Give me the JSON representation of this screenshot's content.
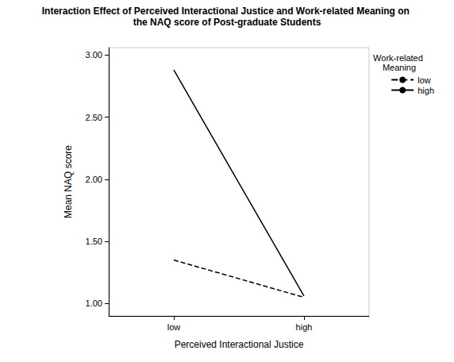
{
  "chart_data": {
    "type": "line",
    "title": "Interaction Effect of Perceived Interactional Justice and Work-related Meaning on the NAQ score of Post-graduate Students",
    "x_label": "Perceived Interactional Justice",
    "y_label": "Mean NAQ score",
    "legend_title": "Work-related Meaning",
    "legend": "right",
    "grid": false,
    "categories": [
      "low",
      "high"
    ],
    "series": [
      {
        "name": "low",
        "color": "#000000",
        "line_style": "dashed",
        "marker": "none",
        "values": [
          1.35,
          1.05
        ]
      },
      {
        "name": "high",
        "color": "#000000",
        "line_style": "solid",
        "marker": "none",
        "values": [
          2.88,
          1.06
        ]
      }
    ],
    "ylim": [
      0.9,
      3.06
    ],
    "yticks": [
      {
        "value": 1,
        "label": "1.00"
      },
      {
        "value": 1.5,
        "label": "1.50"
      },
      {
        "value": 2,
        "label": "2.00"
      },
      {
        "value": 2.5,
        "label": "2.50"
      },
      {
        "value": 3,
        "label": "3.00"
      }
    ]
  }
}
